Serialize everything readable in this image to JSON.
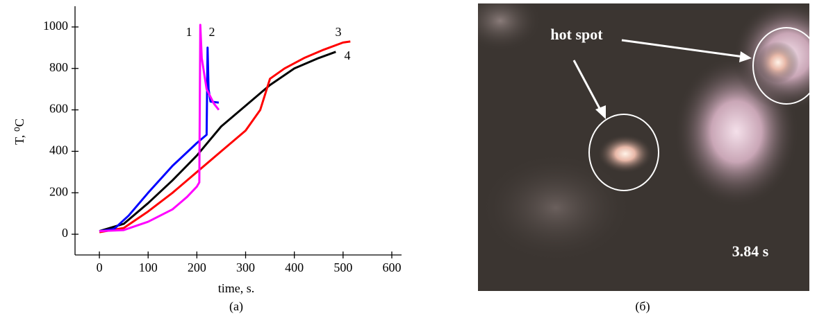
{
  "chart_data": {
    "type": "line",
    "caption": "(a)",
    "x_label": "time, s.",
    "y_label": "T, ⁰C",
    "xlim": [
      -50,
      620
    ],
    "ylim": [
      -100,
      1100
    ],
    "xticks": [
      0,
      100,
      200,
      300,
      400,
      500,
      600
    ],
    "yticks": [
      0,
      200,
      400,
      600,
      800,
      1000
    ],
    "series": [
      {
        "name": "1",
        "color": "#ff00ff",
        "x": [
          0,
          50,
          100,
          150,
          180,
          200,
          205,
          207,
          210,
          220,
          235,
          245
        ],
        "values": [
          15,
          20,
          60,
          120,
          180,
          230,
          250,
          1010,
          850,
          700,
          630,
          600
        ]
      },
      {
        "name": "2",
        "color": "#0000ff",
        "x": [
          0,
          30,
          60,
          100,
          150,
          200,
          220,
          222,
          224,
          228,
          245
        ],
        "values": [
          15,
          25,
          90,
          200,
          330,
          440,
          480,
          900,
          700,
          640,
          635
        ]
      },
      {
        "name": "3",
        "color": "#ff0000",
        "x": [
          0,
          50,
          100,
          150,
          200,
          250,
          300,
          330,
          350,
          380,
          420,
          460,
          500,
          515
        ],
        "values": [
          10,
          30,
          110,
          200,
          300,
          400,
          500,
          600,
          750,
          800,
          850,
          890,
          925,
          930
        ]
      },
      {
        "name": "4",
        "color": "#000000",
        "x": [
          0,
          50,
          100,
          150,
          200,
          250,
          300,
          350,
          400,
          450,
          485
        ],
        "values": [
          15,
          50,
          150,
          260,
          380,
          520,
          620,
          720,
          800,
          850,
          880
        ]
      }
    ]
  },
  "photo": {
    "annotation": "hot spot",
    "timestamp": "3.84 s",
    "caption": "(б)"
  }
}
